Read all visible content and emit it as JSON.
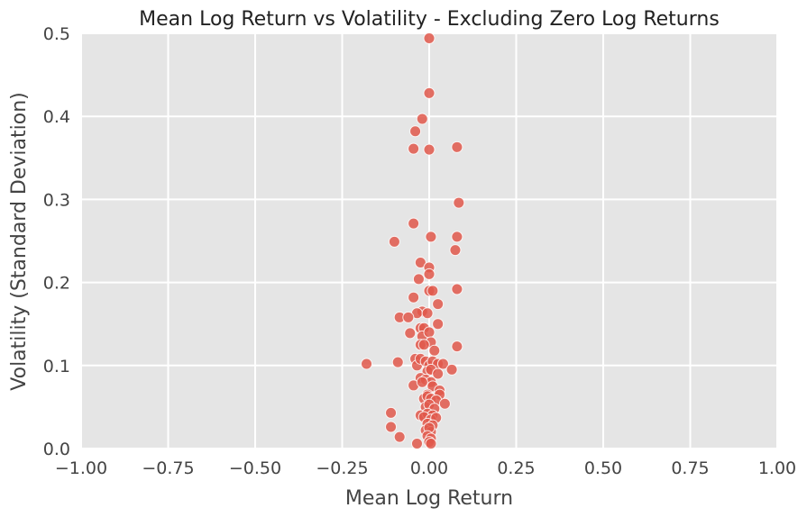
{
  "chart_data": {
    "type": "scatter",
    "title": "Mean Log Return vs Volatility - Excluding Zero Log Returns",
    "xlabel": "Mean Log Return",
    "ylabel": "Volatility (Standard Deviation)",
    "xlim": [
      -1.0,
      1.0
    ],
    "ylim": [
      0.0,
      0.5
    ],
    "xticks": [
      "−1.00",
      "−0.75",
      "−0.50",
      "−0.25",
      "0.00",
      "0.25",
      "0.50",
      "0.75",
      "1.00"
    ],
    "yticks": [
      "0.0",
      "0.1",
      "0.2",
      "0.3",
      "0.4",
      "0.5"
    ],
    "grid": true,
    "legend": "none",
    "colors": {
      "point": "#e0584b",
      "panel": "#e5e5e5",
      "grid": "#ffffff"
    },
    "points": [
      {
        "x": 0.0,
        "y": 0.494
      },
      {
        "x": 0.0,
        "y": 0.428
      },
      {
        "x": -0.02,
        "y": 0.397
      },
      {
        "x": -0.04,
        "y": 0.382
      },
      {
        "x": -0.045,
        "y": 0.361
      },
      {
        "x": 0.0,
        "y": 0.36
      },
      {
        "x": 0.08,
        "y": 0.363
      },
      {
        "x": 0.085,
        "y": 0.296
      },
      {
        "x": -0.045,
        "y": 0.271
      },
      {
        "x": -0.1,
        "y": 0.249
      },
      {
        "x": 0.005,
        "y": 0.255
      },
      {
        "x": 0.08,
        "y": 0.255
      },
      {
        "x": 0.075,
        "y": 0.239
      },
      {
        "x": -0.025,
        "y": 0.224
      },
      {
        "x": 0.0,
        "y": 0.218
      },
      {
        "x": 0.0,
        "y": 0.21
      },
      {
        "x": -0.03,
        "y": 0.204
      },
      {
        "x": 0.0,
        "y": 0.19
      },
      {
        "x": 0.01,
        "y": 0.19
      },
      {
        "x": 0.08,
        "y": 0.192
      },
      {
        "x": -0.045,
        "y": 0.182
      },
      {
        "x": 0.025,
        "y": 0.174
      },
      {
        "x": -0.02,
        "y": 0.165
      },
      {
        "x": -0.035,
        "y": 0.163
      },
      {
        "x": -0.005,
        "y": 0.163
      },
      {
        "x": -0.085,
        "y": 0.158
      },
      {
        "x": -0.06,
        "y": 0.158
      },
      {
        "x": 0.025,
        "y": 0.15
      },
      {
        "x": -0.025,
        "y": 0.145
      },
      {
        "x": -0.015,
        "y": 0.145
      },
      {
        "x": -0.055,
        "y": 0.139
      },
      {
        "x": -0.02,
        "y": 0.135
      },
      {
        "x": 0.0,
        "y": 0.14
      },
      {
        "x": 0.005,
        "y": 0.128
      },
      {
        "x": -0.025,
        "y": 0.125
      },
      {
        "x": -0.015,
        "y": 0.125
      },
      {
        "x": 0.015,
        "y": 0.118
      },
      {
        "x": 0.08,
        "y": 0.123
      },
      {
        "x": -0.18,
        "y": 0.102
      },
      {
        "x": -0.09,
        "y": 0.104
      },
      {
        "x": -0.04,
        "y": 0.108
      },
      {
        "x": -0.035,
        "y": 0.1
      },
      {
        "x": -0.025,
        "y": 0.108
      },
      {
        "x": -0.01,
        "y": 0.105
      },
      {
        "x": 0.0,
        "y": 0.1
      },
      {
        "x": 0.01,
        "y": 0.105
      },
      {
        "x": 0.025,
        "y": 0.102
      },
      {
        "x": 0.04,
        "y": 0.102
      },
      {
        "x": -0.005,
        "y": 0.093
      },
      {
        "x": 0.005,
        "y": 0.095
      },
      {
        "x": 0.025,
        "y": 0.09
      },
      {
        "x": 0.065,
        "y": 0.095
      },
      {
        "x": -0.025,
        "y": 0.085
      },
      {
        "x": -0.01,
        "y": 0.083
      },
      {
        "x": 0.005,
        "y": 0.08
      },
      {
        "x": -0.045,
        "y": 0.076
      },
      {
        "x": -0.02,
        "y": 0.08
      },
      {
        "x": 0.01,
        "y": 0.075
      },
      {
        "x": 0.03,
        "y": 0.07
      },
      {
        "x": -0.005,
        "y": 0.065
      },
      {
        "x": 0.03,
        "y": 0.065
      },
      {
        "x": -0.015,
        "y": 0.06
      },
      {
        "x": -0.005,
        "y": 0.063
      },
      {
        "x": 0.005,
        "y": 0.06
      },
      {
        "x": 0.02,
        "y": 0.058
      },
      {
        "x": 0.045,
        "y": 0.054
      },
      {
        "x": -0.01,
        "y": 0.05
      },
      {
        "x": 0.0,
        "y": 0.053
      },
      {
        "x": 0.015,
        "y": 0.048
      },
      {
        "x": -0.11,
        "y": 0.043
      },
      {
        "x": -0.025,
        "y": 0.04
      },
      {
        "x": -0.005,
        "y": 0.042
      },
      {
        "x": 0.01,
        "y": 0.04
      },
      {
        "x": -0.015,
        "y": 0.038
      },
      {
        "x": 0.005,
        "y": 0.035
      },
      {
        "x": 0.02,
        "y": 0.037
      },
      {
        "x": -0.005,
        "y": 0.03
      },
      {
        "x": 0.01,
        "y": 0.028
      },
      {
        "x": -0.11,
        "y": 0.026
      },
      {
        "x": -0.01,
        "y": 0.022
      },
      {
        "x": 0.005,
        "y": 0.02
      },
      {
        "x": 0.0,
        "y": 0.025
      },
      {
        "x": -0.085,
        "y": 0.014
      },
      {
        "x": -0.005,
        "y": 0.015
      },
      {
        "x": 0.005,
        "y": 0.012
      },
      {
        "x": -0.035,
        "y": 0.006
      },
      {
        "x": 0.0,
        "y": 0.008
      },
      {
        "x": 0.005,
        "y": 0.006
      }
    ]
  }
}
